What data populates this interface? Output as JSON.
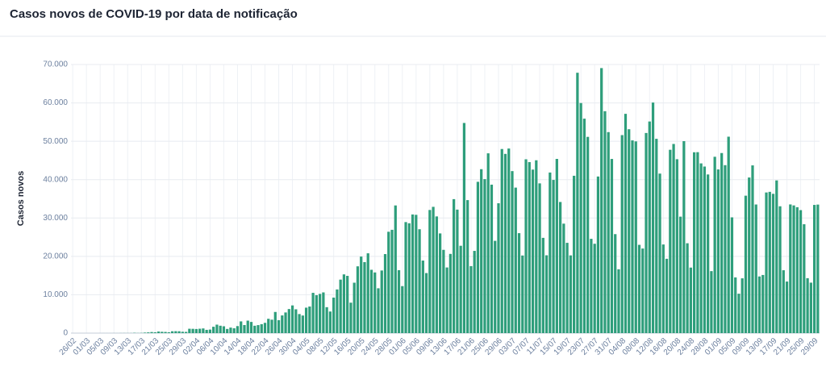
{
  "chart_data": {
    "type": "bar",
    "title": "Casos novos de COVID-19 por data de notificação",
    "y_label": "Casos novos",
    "color": "#2e9e7b",
    "grid": true,
    "ylim": [
      0,
      70000
    ],
    "yticks": [
      0,
      {
        "value": 10000,
        "label": "10.000"
      },
      {
        "value": 20000,
        "label": "20.000"
      },
      {
        "value": 30000,
        "label": "30.000"
      },
      {
        "value": 40000,
        "label": "40.000"
      },
      {
        "value": 50000,
        "label": "50.000"
      },
      {
        "value": 60000,
        "label": "60.000"
      },
      {
        "value": 70000,
        "label": "70.000"
      }
    ],
    "categories": [
      "26/02",
      null,
      null,
      null,
      "01/03",
      null,
      null,
      null,
      "05/03",
      null,
      null,
      null,
      "09/03",
      null,
      null,
      null,
      "13/03",
      null,
      null,
      null,
      "17/03",
      null,
      null,
      null,
      "21/03",
      null,
      null,
      null,
      "25/03",
      null,
      null,
      null,
      "29/03",
      null,
      null,
      null,
      "02/04",
      null,
      null,
      null,
      "06/04",
      null,
      null,
      null,
      "10/04",
      null,
      null,
      null,
      "14/04",
      null,
      null,
      null,
      "18/04",
      null,
      null,
      null,
      "22/04",
      null,
      null,
      null,
      "26/04",
      null,
      null,
      null,
      "30/04",
      null,
      null,
      null,
      "04/05",
      null,
      null,
      null,
      "08/05",
      null,
      null,
      null,
      "12/05",
      null,
      null,
      null,
      "16/05",
      null,
      null,
      null,
      "20/05",
      null,
      null,
      null,
      "24/05",
      null,
      null,
      null,
      "28/05",
      null,
      null,
      null,
      "01/06",
      null,
      null,
      null,
      "05/06",
      null,
      null,
      null,
      "09/06",
      null,
      null,
      null,
      "13/06",
      null,
      null,
      null,
      "17/06",
      null,
      null,
      null,
      "21/06",
      null,
      null,
      null,
      "25/06",
      null,
      null,
      null,
      "29/06",
      null,
      null,
      null,
      "03/07",
      null,
      null,
      null,
      "07/07",
      null,
      null,
      null,
      "11/07",
      null,
      null,
      null,
      "15/07",
      null,
      null,
      null,
      "19/07",
      null,
      null,
      null,
      "23/07",
      null,
      null,
      null,
      "27/07",
      null,
      null,
      null,
      "31/07",
      null,
      null,
      null,
      "04/08",
      null,
      null,
      null,
      "08/08",
      null,
      null,
      null,
      "12/08",
      null,
      null,
      null,
      "16/08",
      null,
      null,
      null,
      "20/08",
      null,
      null,
      null,
      "24/08",
      null,
      null,
      null,
      "28/08",
      null,
      null,
      null,
      "01/09",
      null,
      null,
      null,
      "05/09",
      null,
      null,
      null,
      "09/09",
      null,
      null,
      null,
      "13/09",
      null,
      null,
      null,
      "17/09",
      null,
      null,
      null,
      "21/09",
      null,
      null,
      null,
      "25/09",
      null,
      null,
      null,
      "29/09",
      null
    ],
    "values": [
      1,
      0,
      0,
      1,
      0,
      0,
      0,
      1,
      4,
      5,
      6,
      6,
      12,
      9,
      18,
      25,
      21,
      23,
      79,
      34,
      57,
      137,
      193,
      283,
      224,
      418,
      345,
      310,
      232,
      482,
      502,
      487,
      352,
      323,
      1138,
      1119,
      1074,
      1146,
      1222,
      852,
      926,
      1661,
      2210,
      1930,
      1781,
      1089,
      1442,
      1261,
      1832,
      3058,
      2105,
      3257,
      2917,
      1927,
      2089,
      2336,
      2678,
      3735,
      3503,
      5514,
      3379,
      4613,
      5385,
      6276,
      7218,
      6209,
      4970,
      4588,
      6633,
      6935,
      10503,
      9888,
      10222,
      10611,
      6760,
      5632,
      9258,
      11385,
      13944,
      15305,
      14919,
      7938,
      13140,
      17408,
      19951,
      18508,
      20803,
      16508,
      15813,
      11687,
      16324,
      20599,
      26417,
      26928,
      33274,
      16409,
      12247,
      28936,
      28633,
      30925,
      30830,
      27075,
      18912,
      15654,
      32091,
      32913,
      30412,
      25982,
      21704,
      17110,
      20647,
      34918,
      32188,
      22765,
      54771,
      34666,
      17459,
      21432,
      39436,
      42725,
      40131,
      46860,
      38693,
      24052,
      33846,
      47984,
      46712,
      48105,
      42223,
      37923,
      26051,
      20229,
      45305,
      44571,
      42619,
      45048,
      39023,
      24831,
      20286,
      41857,
      39924,
      45403,
      34177,
      28532,
      23529,
      20257,
      41008,
      67860,
      59961,
      55891,
      51147,
      24578,
      23284,
      40816,
      69074,
      57837,
      52383,
      45392,
      25800,
      16641,
      51603,
      57152,
      53139,
      50230,
      49970,
      23010,
      22048,
      52160,
      55155,
      60091,
      50644,
      41576,
      23101,
      19373,
      47784,
      49298,
      45323,
      30355,
      50032,
      23421,
      17078,
      47134,
      47161,
      44235,
      43412,
      41350,
      16158,
      45961,
      42659,
      46934,
      43773,
      51194,
      30168,
      14521,
      10273,
      14279,
      35816,
      40557,
      43718,
      33523,
      14768,
      15155,
      36653,
      36820,
      36303,
      39797,
      33057,
      16389,
      13439,
      33536,
      33281,
      32817,
      32058,
      28378,
      14318,
      13155,
      33413,
      33500
    ]
  }
}
